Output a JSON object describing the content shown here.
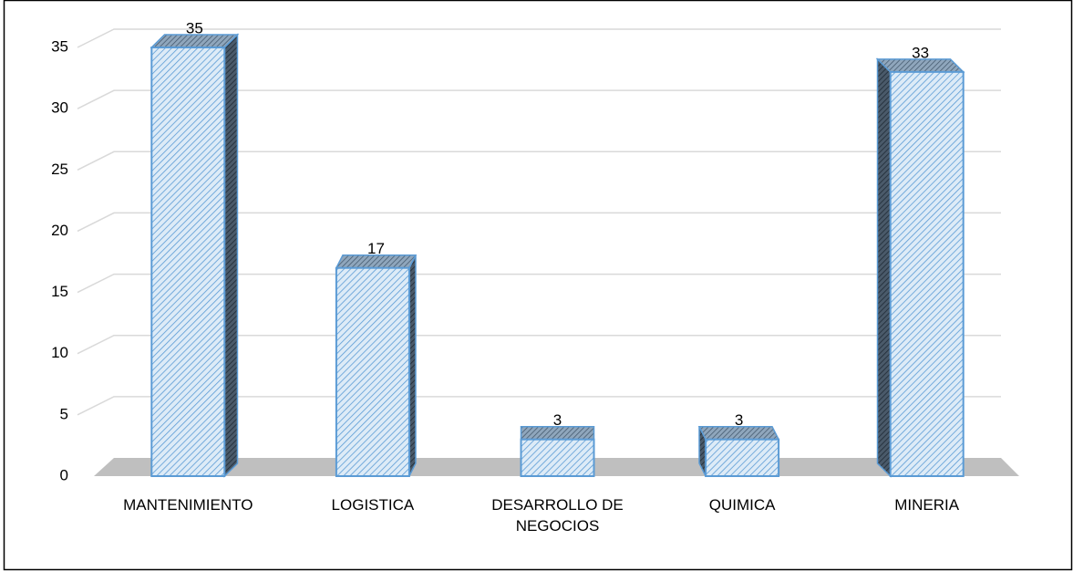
{
  "chart_data": {
    "type": "bar3d",
    "categories": [
      "MANTENIMIENTO",
      "LOGISTICA",
      "DESARROLLO DE NEGOCIOS",
      "QUIMICA",
      "MINERIA"
    ],
    "values": [
      35,
      17,
      3,
      3,
      33
    ],
    "color": "#5b9bd5",
    "ylim": [
      0,
      35
    ],
    "yticks": [
      0,
      5,
      10,
      15,
      20,
      25,
      30,
      35
    ],
    "grid": true
  }
}
